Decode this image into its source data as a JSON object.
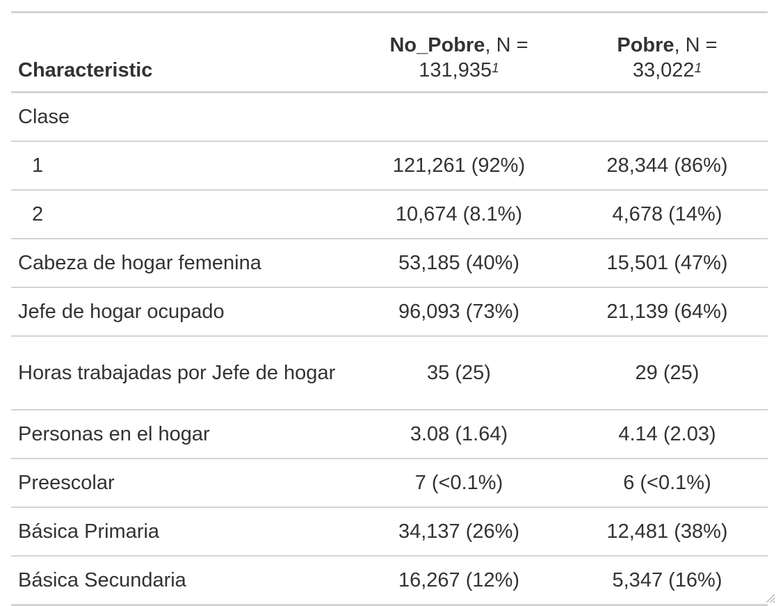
{
  "table": {
    "header": {
      "characteristic": "Characteristic",
      "col1_name": "No_Pobre",
      "col1_n_prefix": ", N =",
      "col1_n": "131,935",
      "col1_note": "1",
      "col2_name": "Pobre",
      "col2_n_prefix": ", N =",
      "col2_n": "33,022",
      "col2_note": "1"
    },
    "rows": [
      {
        "label": "Clase",
        "no_pobre": "",
        "pobre": ""
      },
      {
        "label": "1",
        "no_pobre": "121,261 (92%)",
        "pobre": "28,344 (86%)"
      },
      {
        "label": "2",
        "no_pobre": "10,674 (8.1%)",
        "pobre": "4,678 (14%)"
      },
      {
        "label": "Cabeza de hogar femenina",
        "no_pobre": "53,185 (40%)",
        "pobre": "15,501 (47%)"
      },
      {
        "label": "Jefe de hogar ocupado",
        "no_pobre": "96,093 (73%)",
        "pobre": "21,139 (64%)"
      },
      {
        "label": "Horas trabajadas por Jefe de hogar",
        "no_pobre": "35 (25)",
        "pobre": "29 (25)"
      },
      {
        "label": "Personas en el hogar",
        "no_pobre": "3.08 (1.64)",
        "pobre": "4.14 (2.03)"
      },
      {
        "label": "Preescolar",
        "no_pobre": "7 (<0.1%)",
        "pobre": "6 (<0.1%)"
      },
      {
        "label": "Básica Primaria",
        "no_pobre": "34,137 (26%)",
        "pobre": "12,481 (38%)"
      },
      {
        "label": "Básica Secundaria",
        "no_pobre": "16,267 (12%)",
        "pobre": "5,347 (16%)"
      }
    ]
  }
}
